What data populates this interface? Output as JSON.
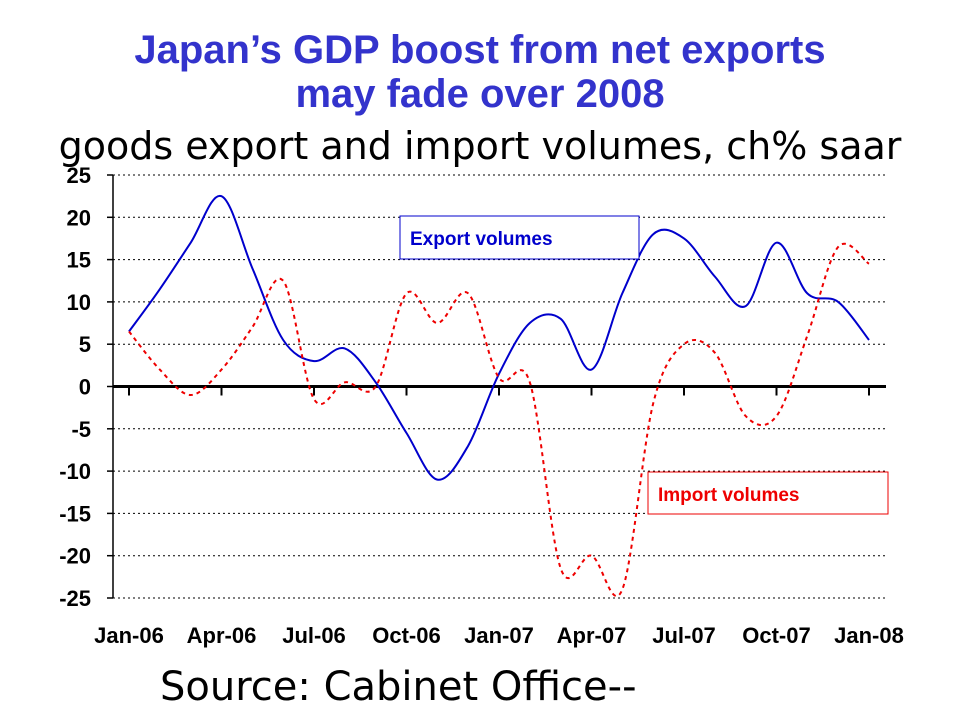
{
  "title_line1": "Japan’s GDP boost from net exports",
  "title_line2": "may fade over 2008",
  "subtitle": "goods export and import volumes, ch% saar",
  "source": "Source: Cabinet Office--",
  "colors": {
    "title": "#3333cc",
    "export": "#0000cc",
    "import": "#ee0000"
  },
  "chart_data": {
    "type": "line",
    "ylim": [
      -25,
      25
    ],
    "yticks": [
      25,
      20,
      15,
      10,
      5,
      0,
      -5,
      -10,
      -15,
      -20,
      -25
    ],
    "xtick_labels": [
      "Jan-06",
      "Apr-06",
      "Jul-06",
      "Oct-06",
      "Jan-07",
      "Apr-07",
      "Jul-07",
      "Oct-07",
      "Jan-08"
    ],
    "x": [
      "Jan-06",
      "Feb-06",
      "Mar-06",
      "Apr-06",
      "May-06",
      "Jun-06",
      "Jul-06",
      "Aug-06",
      "Sep-06",
      "Oct-06",
      "Nov-06",
      "Dec-06",
      "Jan-07",
      "Feb-07",
      "Mar-07",
      "Apr-07",
      "May-07",
      "Jun-07",
      "Jul-07",
      "Aug-07",
      "Sep-07",
      "Oct-07",
      "Nov-07",
      "Dec-07",
      "Jan-08"
    ],
    "grid": "horizontal dotted",
    "series": [
      {
        "name": "Export volumes",
        "style": "solid",
        "values": [
          6.5,
          11.5,
          17.0,
          22.5,
          14.0,
          5.5,
          3.0,
          4.5,
          0.5,
          -5.5,
          -11.0,
          -7.0,
          1.5,
          7.5,
          8.0,
          2.0,
          11.0,
          18.0,
          17.5,
          13.0,
          9.5,
          17.0,
          11.0,
          10.0,
          5.5
        ]
      },
      {
        "name": "Import volumes",
        "style": "dashed",
        "values": [
          6.5,
          2.0,
          -1.0,
          2.0,
          7.0,
          12.5,
          -1.5,
          0.5,
          0.0,
          11.0,
          7.5,
          11.0,
          1.0,
          0.5,
          -21.5,
          -20.0,
          -24.0,
          -2.0,
          5.0,
          4.0,
          -3.5,
          -3.5,
          6.0,
          16.5,
          14.5
        ]
      }
    ]
  }
}
